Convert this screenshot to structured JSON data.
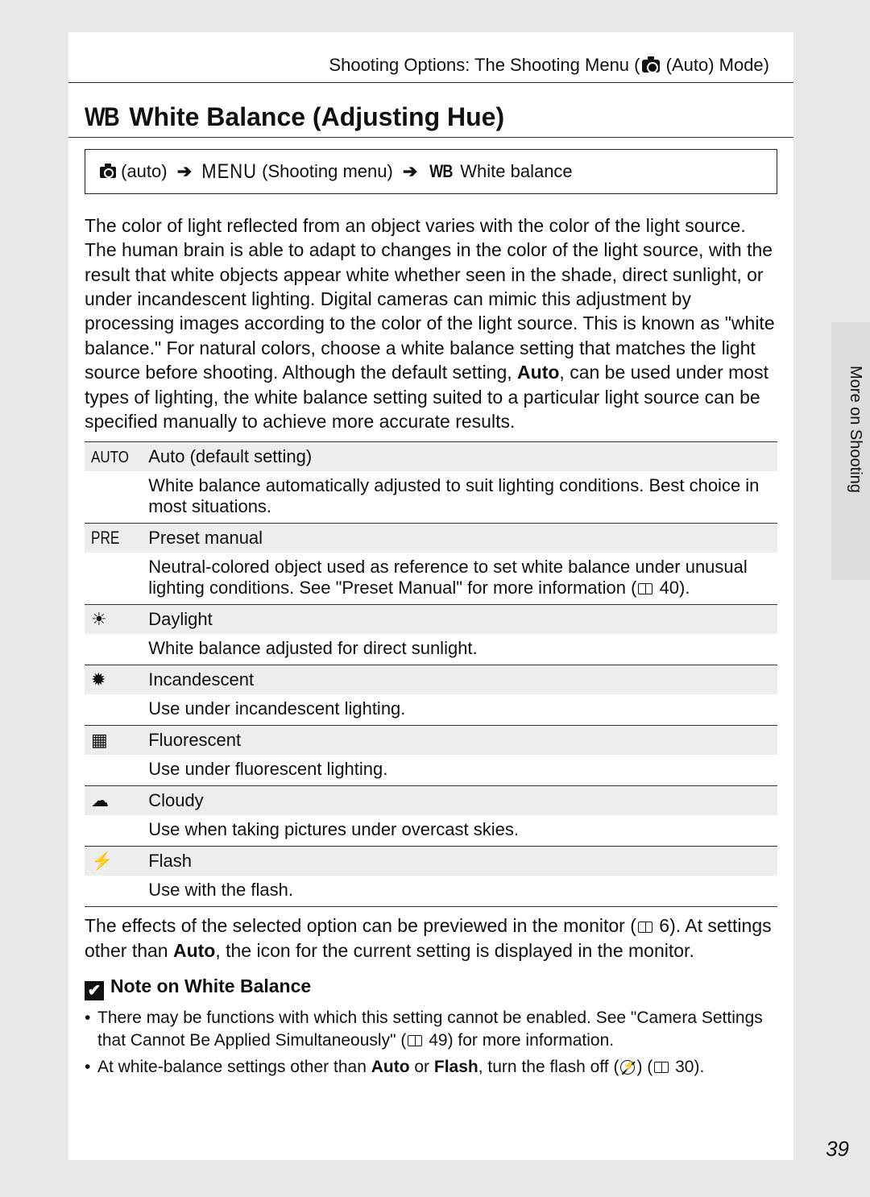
{
  "breadcrumb": {
    "prefix": "Shooting Options: The Shooting Menu (",
    "mode": " (Auto) Mode)"
  },
  "title": "White Balance (Adjusting Hue)",
  "navpath": {
    "a": " (auto) ",
    "menu": "MENU",
    "b": " (Shooting menu)  ",
    "wb": "WB",
    "c": " White balance"
  },
  "intro_pre": "The color of light reflected from an object varies with the color of the light source. The human brain is able to adapt to changes in the color of the light source, with the result that white objects appear white whether seen in the shade, direct sunlight, or under incandescent lighting. Digital cameras can mimic this adjustment by processing images according to the color of the light source. This is known as \"white balance.\" For natural colors, choose a white balance setting that matches the light source before shooting. Although the default setting, ",
  "intro_bold": "Auto",
  "intro_post": ", can be used under most types of lighting, the white balance setting suited to a particular light source can be specified manually to achieve more accurate results.",
  "options": [
    {
      "icon": "AUTO",
      "icon_class": "auto",
      "label": "Auto (default setting)",
      "desc": "White balance automatically adjusted to suit lighting conditions. Best choice in most situations."
    },
    {
      "icon": "PRE",
      "icon_class": "pre",
      "label": "Preset manual",
      "desc_pre": "Neutral-colored object used as reference to set white balance under unusual lighting conditions. See \"Preset Manual\" for more information (",
      "desc_ref": "40",
      "desc_post": ")."
    },
    {
      "icon": "☀",
      "icon_class": "sym",
      "label": "Daylight",
      "desc": "White balance adjusted for direct sunlight."
    },
    {
      "icon": "✹",
      "icon_class": "sym",
      "label": "Incandescent",
      "desc": "Use under incandescent lighting."
    },
    {
      "icon": "▦",
      "icon_class": "sym",
      "label": "Fluorescent",
      "desc": "Use under fluorescent lighting."
    },
    {
      "icon": "☁",
      "icon_class": "sym",
      "label": "Cloudy",
      "desc": "Use when taking pictures under overcast skies."
    },
    {
      "icon": "⚡",
      "icon_class": "sym",
      "label": "Flash",
      "desc": "Use with the flash."
    }
  ],
  "outro_pre": "The effects of the selected option can be previewed in the monitor (",
  "outro_ref": "6",
  "outro_mid": "). At settings other than ",
  "outro_bold": "Auto",
  "outro_post": ", the icon for the current setting is displayed in the monitor.",
  "note_title": "Note on White Balance",
  "notes": {
    "n1_pre": "There may be functions with which this setting cannot be enabled. See \"Camera Settings that Cannot Be Applied Simultaneously\" (",
    "n1_ref": "49",
    "n1_post": ") for more information.",
    "n2_pre": "At white-balance settings other than ",
    "n2_b1": "Auto",
    "n2_mid": " or ",
    "n2_b2": "Flash",
    "n2_mid2": ", turn the flash off (",
    "n2_post": ") (",
    "n2_ref": "30",
    "n2_end": ")."
  },
  "sidetab": "More on Shooting",
  "pagenum": "39"
}
